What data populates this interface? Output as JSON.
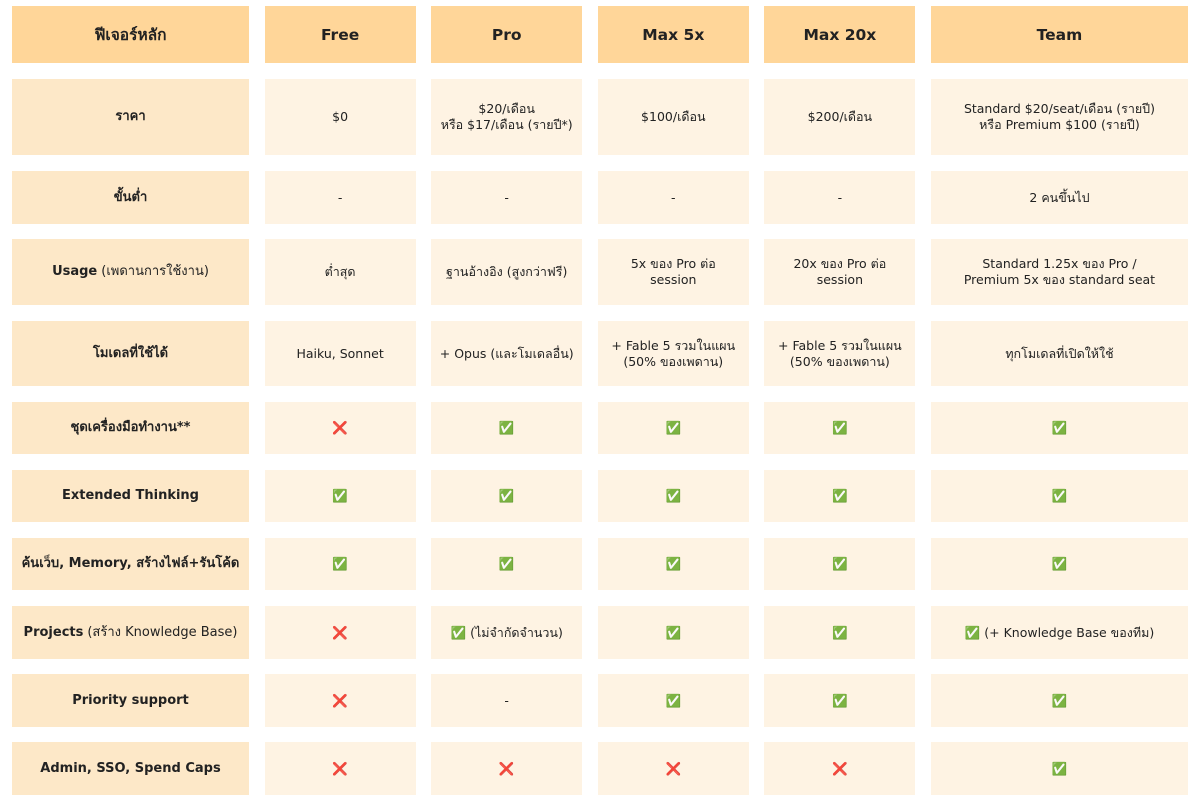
{
  "table": {
    "header": [
      "ฟีเจอร์หลัก",
      "Free",
      "Pro",
      "Max 5x",
      "Max 20x",
      "Team"
    ],
    "rows": [
      {
        "label": "ราคา",
        "cells": [
          "$0",
          "$20/เดือน\nหรือ $17/เดือน (รายปี*)",
          "$100/เดือน",
          "$200/เดือน",
          "Standard $20/seat/เดือน (รายปี)\nหรือ Premium $100 (รายปี)"
        ]
      },
      {
        "label": "ขั้นต่ำ",
        "cells": [
          "-",
          "-",
          "-",
          "-",
          "2 คนขึ้นไป"
        ]
      },
      {
        "label": "Usage",
        "note": "(เพดานการใช้งาน)",
        "cells": [
          "ต่ำสุด",
          "ฐานอ้างอิง (สูงกว่าฟรี)",
          "5x ของ Pro ต่อ\nsession",
          "20x ของ Pro ต่อ\nsession",
          "Standard 1.25x ของ Pro /\nPremium 5x ของ standard seat"
        ]
      },
      {
        "label": "โมเดลที่ใช้ได้",
        "cells": [
          "Haiku, Sonnet",
          "+ Opus (และโมเดลอื่น)",
          "+ Fable 5 รวมในแผน\n(50% ของเพดาน)",
          "+ Fable 5 รวมในแผน\n(50% ของเพดาน)",
          "ทุกโมเดลที่เปิดให้ใช้"
        ]
      },
      {
        "label": "ชุดเครื่องมือทำงาน**",
        "cells": [
          "❌",
          "✅",
          "✅",
          "✅",
          "✅"
        ]
      },
      {
        "label": "Extended Thinking",
        "cells": [
          "✅",
          "✅",
          "✅",
          "✅",
          "✅"
        ]
      },
      {
        "label": "ค้นเว็บ, Memory, สร้างไฟล์+รันโค้ด",
        "cells": [
          "✅",
          "✅",
          "✅",
          "✅",
          "✅"
        ]
      },
      {
        "label": "Projects",
        "note": "(สร้าง Knowledge Base)",
        "cells": [
          "❌",
          "✅ (ไม่จำกัดจำนวน)",
          "✅",
          "✅",
          "✅ (+ Knowledge Base ของทีม)"
        ]
      },
      {
        "label": "Priority support",
        "cells": [
          "❌",
          "-",
          "✅",
          "✅",
          "✅"
        ]
      },
      {
        "label": "Admin, SSO, Spend Caps",
        "cells": [
          "❌",
          "❌",
          "❌",
          "❌",
          "✅"
        ]
      }
    ]
  }
}
